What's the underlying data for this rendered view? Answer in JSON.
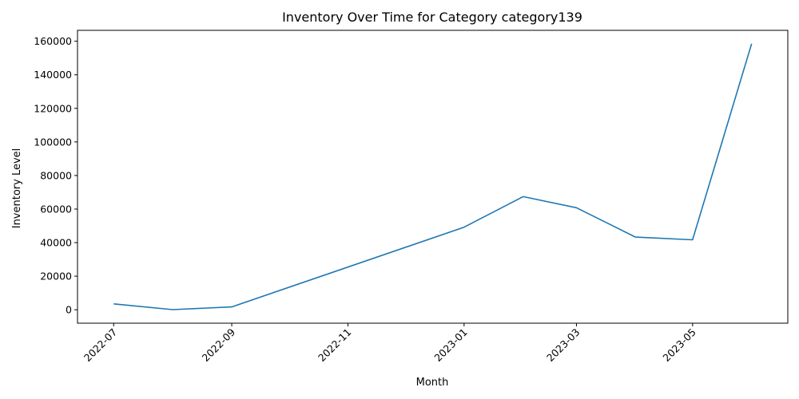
{
  "chart_data": {
    "type": "line",
    "title": "Inventory Over Time for Category category139",
    "xlabel": "Month",
    "ylabel": "Inventory Level",
    "x_ticks": [
      "2022-07",
      "2022-09",
      "2022-11",
      "2023-01",
      "2023-03",
      "2023-05"
    ],
    "y_ticks": [
      "0",
      "20000",
      "40000",
      "60000",
      "80000",
      "100000",
      "120000",
      "140000",
      "160000"
    ],
    "ylim": [
      -8000,
      166500
    ],
    "xlim": [
      "2022-06-12",
      "2023-06-20"
    ],
    "grid": false,
    "series": [
      {
        "color": "#1f77b4",
        "points": [
          {
            "x": "2022-07-01",
            "y": 3500
          },
          {
            "x": "2022-08-01",
            "y": 100
          },
          {
            "x": "2022-09-01",
            "y": 1700
          },
          {
            "x": "2023-01-01",
            "y": 49200
          },
          {
            "x": "2023-02-01",
            "y": 67400
          },
          {
            "x": "2023-03-01",
            "y": 60800
          },
          {
            "x": "2023-04-01",
            "y": 43300
          },
          {
            "x": "2023-05-01",
            "y": 41700
          },
          {
            "x": "2023-06-01",
            "y": 158500
          }
        ]
      }
    ]
  }
}
